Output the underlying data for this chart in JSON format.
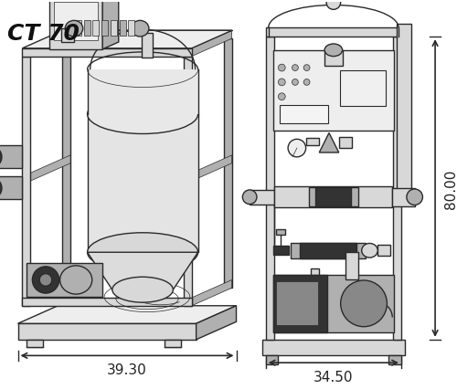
{
  "title": "CT 70",
  "title_fontsize": 18,
  "bg_color": "#ffffff",
  "line_color": "#2a2a2a",
  "dim_color": "#222222",
  "dim_fontsize": 11,
  "lw_main": 1.0,
  "lw_thin": 0.5,
  "lw_thick": 1.5,
  "left_label": "39.30",
  "right_label_w": "34.50",
  "right_label_h": "80.00",
  "fc_light": "#eeeeee",
  "fc_mid": "#d8d8d8",
  "fc_dark": "#b0b0b0",
  "fc_darker": "#888888",
  "fc_black": "#333333"
}
